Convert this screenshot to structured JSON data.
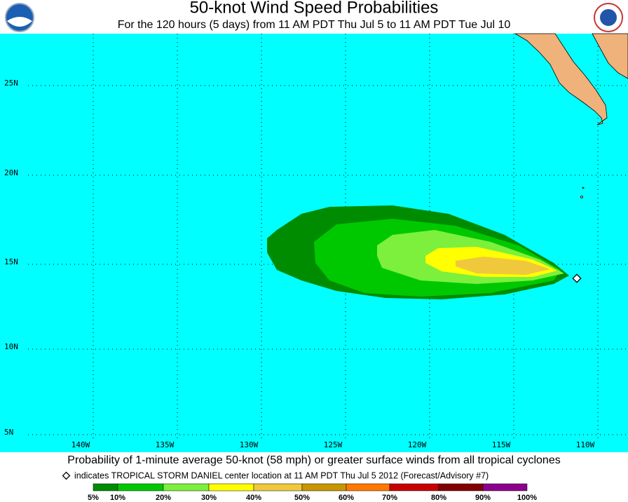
{
  "header": {
    "title": "50-knot Wind Speed Probabilities",
    "subtitle": "For the 120 hours (5 days) from 11 AM PDT Thu Jul 5 to 11 AM PDT Tue Jul 10"
  },
  "map": {
    "lat_labels": [
      "25N",
      "20N",
      "15N",
      "10N",
      "5N"
    ],
    "lon_labels": [
      "140W",
      "135W",
      "130W",
      "125W",
      "120W",
      "115W",
      "110W"
    ]
  },
  "footer": {
    "caption": "Probability of 1-minute average 50-knot (58 mph) or greater surface winds from all tropical cyclones",
    "note": "indicates TROPICAL STORM DANIEL center location at 11 AM PDT Thu Jul 5 2012 (Forecast/Advisory #7)"
  },
  "legend": {
    "labels": [
      "5%",
      "10%",
      "20%",
      "30%",
      "40%",
      "50%",
      "60%",
      "70%",
      "80%",
      "90%",
      "100%"
    ],
    "colors": [
      "#008c00",
      "#00c800",
      "#7cf03c",
      "#ffff00",
      "#f0c83c",
      "#c89600",
      "#ff7800",
      "#c80000",
      "#820000",
      "#8c008c"
    ]
  }
}
